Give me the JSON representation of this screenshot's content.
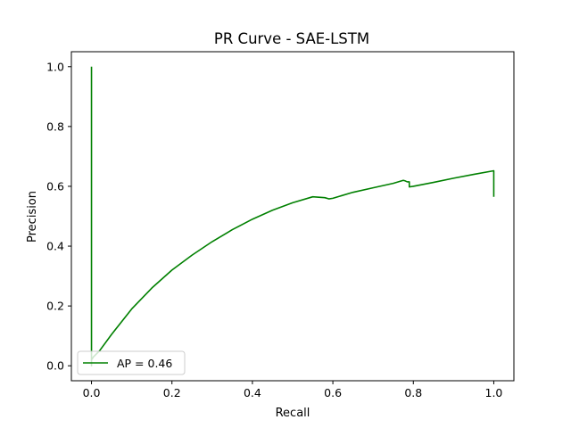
{
  "chart_data": {
    "type": "line",
    "title": "PR Curve - SAE-LSTM",
    "xlabel": "Recall",
    "ylabel": "Precision",
    "xlim": [
      -0.05,
      1.05
    ],
    "ylim": [
      -0.05,
      1.05
    ],
    "xticks": [
      0.0,
      0.2,
      0.4,
      0.6,
      0.8,
      1.0
    ],
    "xtick_labels": [
      "0.0",
      "0.2",
      "0.4",
      "0.6",
      "0.8",
      "1.0"
    ],
    "yticks": [
      0.0,
      0.2,
      0.4,
      0.6,
      0.8,
      1.0
    ],
    "ytick_labels": [
      "0.0",
      "0.2",
      "0.4",
      "0.6",
      "0.8",
      "1.0"
    ],
    "grid": false,
    "legend_position": "lower-left",
    "series": [
      {
        "name": "AP = 0.46",
        "color": "#008000",
        "x": [
          0.0,
          0.0,
          0.0,
          0.005,
          0.02,
          0.05,
          0.1,
          0.15,
          0.2,
          0.25,
          0.3,
          0.35,
          0.4,
          0.45,
          0.5,
          0.55,
          0.58,
          0.59,
          0.6,
          0.65,
          0.7,
          0.75,
          0.775,
          0.78,
          0.785,
          0.79,
          0.79,
          0.8,
          0.85,
          0.9,
          0.95,
          1.0,
          1.0
        ],
        "y": [
          1.0,
          0.0,
          0.02,
          0.03,
          0.05,
          0.105,
          0.19,
          0.26,
          0.32,
          0.37,
          0.415,
          0.455,
          0.49,
          0.52,
          0.545,
          0.565,
          0.562,
          0.558,
          0.56,
          0.58,
          0.595,
          0.61,
          0.62,
          0.618,
          0.615,
          0.615,
          0.598,
          0.6,
          0.613,
          0.627,
          0.64,
          0.652,
          0.565
        ]
      }
    ]
  }
}
